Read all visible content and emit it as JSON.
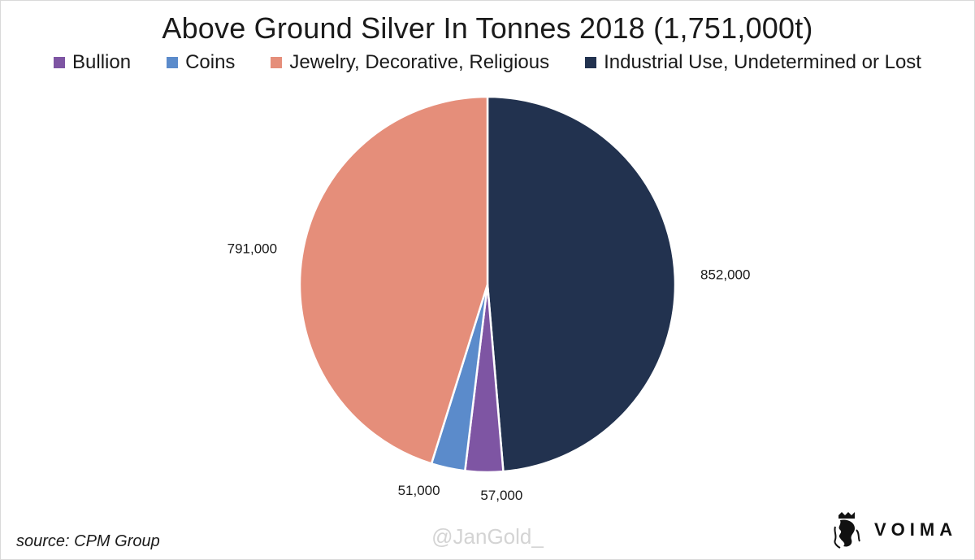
{
  "chart_data": {
    "type": "pie",
    "title": "Above Ground Silver In Tonnes 2018 (1,751,000t)",
    "legend_position": "top",
    "slices": [
      {
        "name": "Bullion",
        "value": 57000,
        "label": "57,000",
        "color": "#7e55a3"
      },
      {
        "name": "Coins",
        "value": 51000,
        "label": "51,000",
        "color": "#5b8bcb"
      },
      {
        "name": "Jewelry, Decorative, Religious",
        "value": 791000,
        "label": "791,000",
        "color": "#e58e7a"
      },
      {
        "name": "Industrial Use, Undetermined or Lost",
        "value": 852000,
        "label": "852,000",
        "color": "#22324f"
      }
    ],
    "order_clockwise_from_top": [
      "Industrial Use, Undetermined or Lost",
      "Bullion",
      "Coins",
      "Jewelry, Decorative, Religious"
    ]
  },
  "footer": {
    "source": "source: CPM Group",
    "watermark": "@JanGold_",
    "brand": "VOIMA",
    "logo_icon": "lion-crest-icon"
  }
}
